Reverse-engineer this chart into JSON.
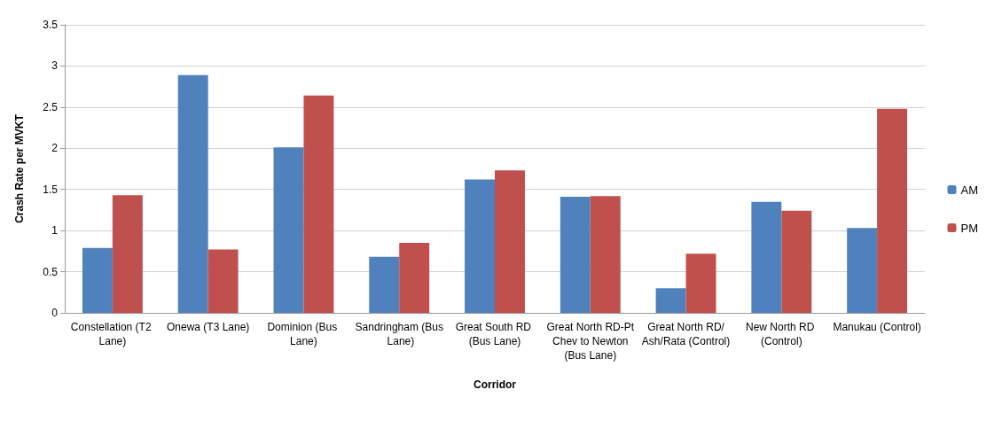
{
  "chart_data": {
    "type": "bar",
    "xlabel": "Corridor",
    "ylabel": "Crash Rate per MVKT",
    "categories": [
      "Constellation (T2 Lane)",
      "Onewa (T3 Lane)",
      "Dominion (Bus Lane)",
      "Sandringham (Bus Lane)",
      "Great South RD (Bus Lane)",
      "Great North RD-Pt Chev to Newton (Bus Lane)",
      "Great North RD/Ash/Rata (Control)",
      "New North RD (Control)",
      "Manukau (Control)"
    ],
    "series": [
      {
        "name": "AM",
        "color": "#4f81bd",
        "values": [
          0.79,
          2.89,
          2.01,
          0.68,
          1.62,
          1.41,
          0.3,
          1.35,
          1.03
        ]
      },
      {
        "name": "PM",
        "color": "#c0504d",
        "values": [
          1.43,
          0.77,
          2.64,
          0.85,
          1.73,
          1.42,
          0.72,
          1.24,
          2.48
        ]
      }
    ],
    "ylim": [
      0,
      3.5
    ],
    "yticks": [
      0,
      0.5,
      1,
      1.5,
      2,
      2.5,
      3,
      3.5
    ],
    "grid": "y",
    "legend": "right"
  }
}
